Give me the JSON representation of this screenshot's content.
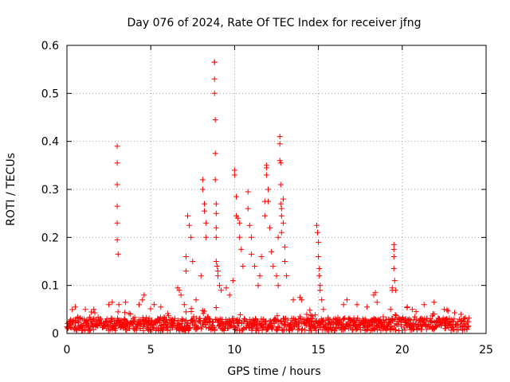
{
  "chart_data": {
    "type": "scatter",
    "title": "Day 076 of 2024, Rate Of TEC Index for receiver jfng",
    "xlabel": "GPS time / hours",
    "ylabel": "ROTI / TECUs",
    "xlim": [
      0,
      25
    ],
    "ylim": [
      0,
      0.6
    ],
    "xticks": [
      0,
      5,
      10,
      15,
      20,
      25
    ],
    "yticks": [
      0,
      0.1,
      0.2,
      0.3,
      0.4,
      0.5,
      0.6
    ],
    "xtick_labels": [
      "0",
      "5",
      "10",
      "15",
      "20",
      "25"
    ],
    "ytick_labels": [
      "0",
      "0.1",
      "0.2",
      "0.3",
      "0.4",
      "0.5",
      "0.6"
    ],
    "grid": true,
    "marker": "+",
    "marker_color": "#ff0000",
    "baseline_range": [
      0,
      24
    ],
    "baseline_level": 0.02,
    "series": [
      {
        "name": "ROTI",
        "x": [
          0.5,
          1.1,
          1.6,
          2.5,
          2.7,
          3.0,
          3.0,
          3.0,
          3.0,
          3.0,
          3.0,
          3.05,
          3.1,
          3.5,
          4.3,
          4.5,
          4.6,
          5.2,
          5.6,
          6.6,
          6.7,
          6.8,
          7.0,
          7.1,
          7.1,
          7.1,
          7.2,
          7.3,
          7.4,
          7.5,
          7.7,
          8.0,
          8.1,
          8.1,
          8.2,
          8.2,
          8.3,
          8.3,
          8.8,
          8.8,
          8.8,
          8.8,
          8.85,
          8.85,
          8.85,
          8.9,
          8.9,
          8.9,
          8.9,
          8.9,
          8.95,
          9.0,
          9.0,
          9.1,
          9.2,
          9.5,
          9.7,
          9.9,
          10.0,
          10.0,
          10.1,
          10.1,
          10.2,
          10.3,
          10.3,
          10.4,
          10.5,
          10.8,
          10.8,
          10.9,
          11.0,
          11.0,
          11.2,
          11.4,
          11.5,
          11.6,
          11.8,
          11.8,
          11.9,
          11.9,
          11.9,
          12.0,
          12.0,
          12.1,
          12.2,
          12.3,
          12.5,
          12.6,
          12.6,
          12.7,
          12.7,
          12.7,
          12.75,
          12.75,
          12.75,
          12.8,
          12.8,
          12.8,
          12.9,
          12.9,
          13.0,
          13.0,
          13.1,
          13.5,
          13.9,
          14.0,
          14.9,
          14.95,
          15.0,
          15.0,
          15.05,
          15.05,
          15.1,
          15.1,
          15.2,
          15.3,
          16.5,
          16.7,
          17.3,
          17.9,
          18.3,
          18.4,
          18.5,
          19.3,
          19.4,
          19.4,
          19.5,
          19.5,
          19.5,
          19.5,
          19.55,
          19.6,
          20.3,
          20.6,
          21.3,
          21.9,
          22.5,
          23.5
        ],
        "y": [
          0.055,
          0.05,
          0.05,
          0.06,
          0.065,
          0.39,
          0.355,
          0.31,
          0.265,
          0.23,
          0.195,
          0.165,
          0.06,
          0.065,
          0.06,
          0.07,
          0.08,
          0.06,
          0.055,
          0.095,
          0.09,
          0.08,
          0.06,
          0.045,
          0.13,
          0.16,
          0.245,
          0.225,
          0.2,
          0.15,
          0.07,
          0.12,
          0.32,
          0.3,
          0.27,
          0.255,
          0.23,
          0.2,
          0.565,
          0.565,
          0.53,
          0.5,
          0.445,
          0.375,
          0.32,
          0.27,
          0.25,
          0.22,
          0.2,
          0.15,
          0.14,
          0.13,
          0.12,
          0.1,
          0.09,
          0.095,
          0.08,
          0.11,
          0.34,
          0.33,
          0.285,
          0.245,
          0.24,
          0.23,
          0.2,
          0.175,
          0.14,
          0.295,
          0.26,
          0.225,
          0.2,
          0.165,
          0.14,
          0.1,
          0.12,
          0.16,
          0.275,
          0.245,
          0.35,
          0.345,
          0.33,
          0.3,
          0.275,
          0.22,
          0.17,
          0.14,
          0.12,
          0.1,
          0.2,
          0.41,
          0.395,
          0.36,
          0.355,
          0.31,
          0.27,
          0.26,
          0.245,
          0.21,
          0.28,
          0.23,
          0.18,
          0.15,
          0.12,
          0.07,
          0.075,
          0.07,
          0.225,
          0.21,
          0.19,
          0.16,
          0.135,
          0.12,
          0.1,
          0.09,
          0.07,
          0.05,
          0.06,
          0.07,
          0.06,
          0.055,
          0.08,
          0.085,
          0.065,
          0.05,
          0.095,
          0.09,
          0.185,
          0.175,
          0.16,
          0.135,
          0.11,
          0.09,
          0.055,
          0.05,
          0.06,
          0.065,
          0.05,
          0.04
        ]
      }
    ]
  }
}
